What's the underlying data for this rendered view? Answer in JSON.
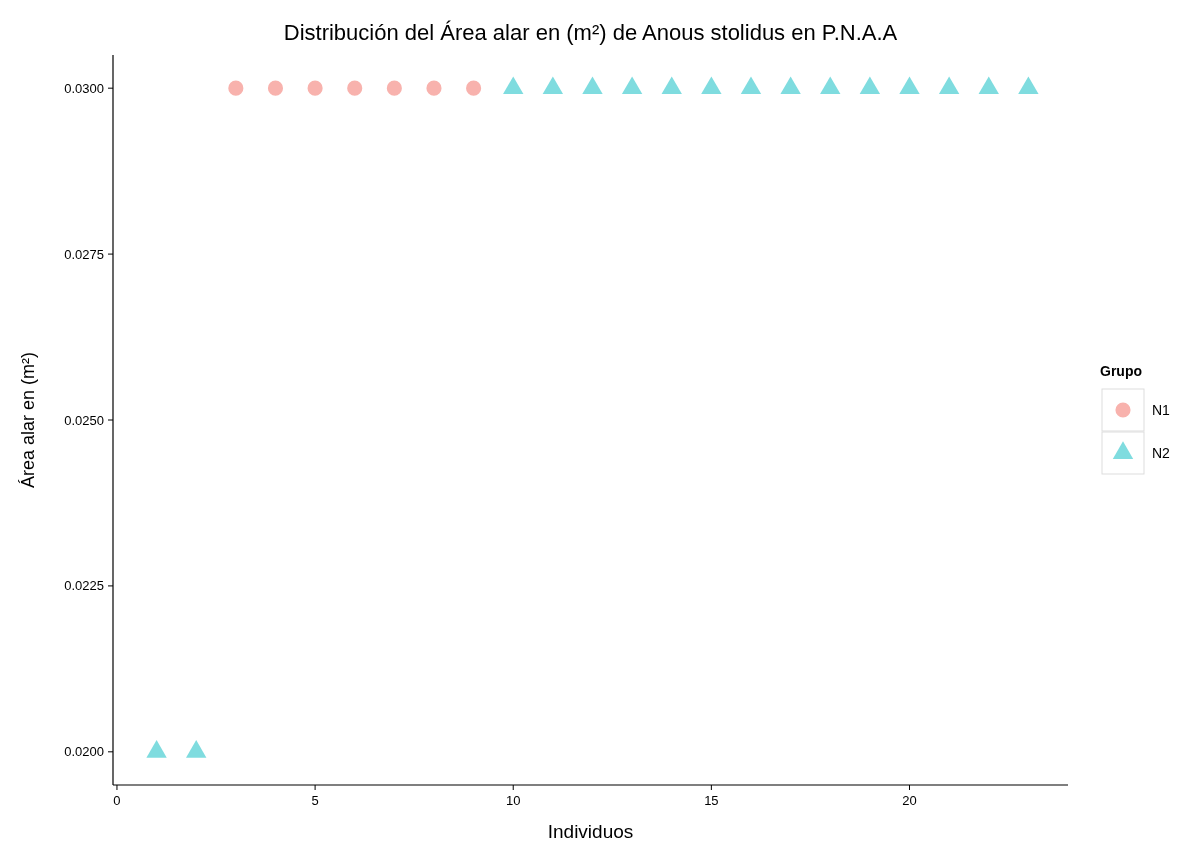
{
  "chart_data": {
    "type": "scatter",
    "title": "Distribución del  Área alar en (m²) de  Anous stolidus  en P.N.A.A",
    "xlabel": "Individuos",
    "ylabel": "Área alar en (m²)",
    "legend_title": "Grupo",
    "legend": "right",
    "grid": false,
    "xlim": [
      -0.1,
      24
    ],
    "xticks": [
      0,
      5,
      10,
      15,
      20
    ],
    "ylim": [
      0.0195,
      0.0305
    ],
    "yticks": [
      {
        "value": 0.02,
        "label": "0.0200"
      },
      {
        "value": 0.0225,
        "label": "0.0225"
      },
      {
        "value": 0.025,
        "label": "0.0250"
      },
      {
        "value": 0.0275,
        "label": "0.0275"
      },
      {
        "value": 0.03,
        "label": "0.0300"
      }
    ],
    "series": [
      {
        "name": "N1",
        "color": "#f8b2ad",
        "marker": "circle",
        "x": [
          3,
          4,
          5,
          6,
          7,
          8,
          9
        ],
        "values": [
          0.03,
          0.03,
          0.03,
          0.03,
          0.03,
          0.03,
          0.03
        ]
      },
      {
        "name": "N2",
        "color": "#7fdcdf",
        "marker": "triangle",
        "x": [
          1,
          2,
          10,
          11,
          12,
          13,
          14,
          15,
          16,
          17,
          18,
          19,
          20,
          21,
          22,
          23
        ],
        "values": [
          0.02,
          0.02,
          0.03,
          0.03,
          0.03,
          0.03,
          0.03,
          0.03,
          0.03,
          0.03,
          0.03,
          0.03,
          0.03,
          0.03,
          0.03,
          0.03
        ]
      }
    ]
  }
}
